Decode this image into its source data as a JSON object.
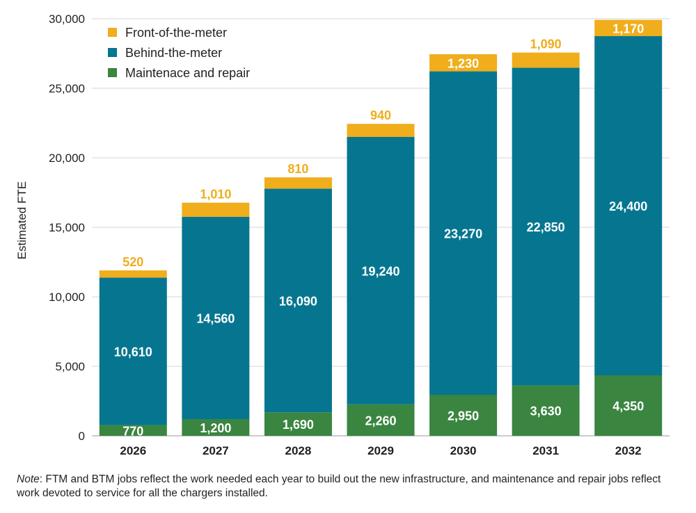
{
  "chart_data": {
    "type": "bar",
    "stacked": true,
    "categories": [
      "2026",
      "2027",
      "2028",
      "2029",
      "2030",
      "2031",
      "2032"
    ],
    "series": [
      {
        "name": "Maintenace and repair",
        "color": "#3a8540",
        "values": [
          770,
          1200,
          1690,
          2260,
          2950,
          3630,
          4350
        ],
        "labels": [
          "770",
          "1,200",
          "1,690",
          "2,260",
          "2,950",
          "3,630",
          "4,350"
        ]
      },
      {
        "name": "Behind-the-meter",
        "color": "#067690",
        "values": [
          10610,
          14560,
          16090,
          19240,
          23270,
          22850,
          24400
        ],
        "labels": [
          "10,610",
          "14,560",
          "16,090",
          "19,240",
          "23,270",
          "22,850",
          "24,400"
        ]
      },
      {
        "name": "Front-of-the-meter",
        "color": "#f0ad1c",
        "values": [
          520,
          1010,
          810,
          940,
          1230,
          1090,
          1170
        ],
        "labels": [
          "520",
          "1,010",
          "810",
          "940",
          "1,230",
          "1,090",
          "1,170"
        ]
      }
    ],
    "legend_order": [
      "Front-of-the-meter",
      "Behind-the-meter",
      "Maintenace and repair"
    ],
    "legend_position": "top-left",
    "ylabel": "Estimated FTE",
    "xlabel": "",
    "ylim": [
      0,
      30000
    ],
    "yticks": [
      0,
      5000,
      10000,
      15000,
      20000,
      25000,
      30000
    ],
    "ytick_labels": [
      "0",
      "5,000",
      "10,000",
      "15,000",
      "20,000",
      "25,000",
      "30,000"
    ],
    "grid": true
  },
  "note": {
    "label": "Note",
    "text": ": FTM and BTM jobs reflect the work needed each year to build out the new infrastructure, and maintenance and repair jobs reflect work devoted to service for all the chargers installed."
  }
}
